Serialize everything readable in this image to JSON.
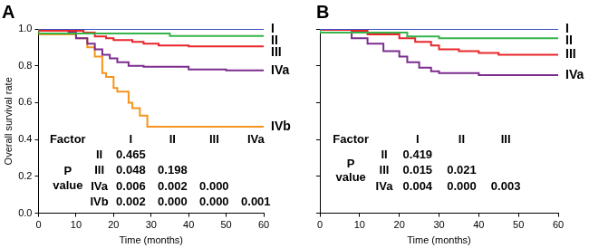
{
  "chart_data": [
    {
      "type": "line",
      "title": "A",
      "x_label": "Time (months)",
      "y_label": "Overall survival rate",
      "line_style": "step",
      "grid": false,
      "xlim": [
        0,
        60
      ],
      "xticks": [
        0,
        10,
        20,
        30,
        40,
        50,
        60
      ],
      "ylim": [
        0,
        1
      ],
      "yticks": [
        {
          "value": 0,
          "label": "0.0"
        },
        {
          "value": 0.2,
          "label": "0.2"
        },
        {
          "value": 0.4,
          "label": "0.4"
        },
        {
          "value": 0.6,
          "label": "0.6"
        },
        {
          "value": 0.8,
          "label": "0.8"
        },
        {
          "value": 1,
          "label": "1.0"
        }
      ],
      "series": [
        {
          "name": "I",
          "color": "#3a52c4",
          "x": [
            0,
            60
          ],
          "values": [
            1,
            1
          ]
        },
        {
          "name": "II",
          "color": "#35b44a",
          "x": [
            0,
            35,
            38,
            60
          ],
          "values": [
            1,
            0.975,
            0.962,
            0.962
          ]
        },
        {
          "name": "III",
          "color": "#e8262a",
          "x": [
            0,
            12,
            15,
            18,
            20,
            25,
            28,
            32,
            40,
            50,
            60
          ],
          "values": [
            1,
            0.99,
            0.98,
            0.96,
            0.95,
            0.94,
            0.93,
            0.92,
            0.91,
            0.905,
            0.905
          ]
        },
        {
          "name": "IVa",
          "color": "#7b2d8e",
          "x": [
            0,
            8,
            10,
            13,
            15,
            17,
            19,
            21,
            24,
            28,
            40,
            50,
            60
          ],
          "values": [
            1,
            0.99,
            0.98,
            0.95,
            0.92,
            0.89,
            0.86,
            0.84,
            0.82,
            0.8,
            0.795,
            0.78,
            0.775
          ]
        },
        {
          "name": "IVb",
          "color": "#f7941d",
          "x": [
            0,
            10,
            13,
            15,
            17,
            18,
            20,
            21,
            24,
            25,
            27,
            29,
            30,
            60
          ],
          "values": [
            1,
            0.97,
            0.95,
            0.9,
            0.85,
            0.76,
            0.74,
            0.68,
            0.66,
            0.6,
            0.57,
            0.53,
            0.47,
            0.47
          ]
        }
      ],
      "p_value_table": {
        "header": "Factor",
        "row_label": [
          "P",
          "value"
        ],
        "columns": [
          "I",
          "II",
          "III",
          "IVa"
        ],
        "rows": [
          {
            "label": "II",
            "values": [
              "0.465"
            ]
          },
          {
            "label": "III",
            "values": [
              "0.048",
              "0.198"
            ]
          },
          {
            "label": "IVa",
            "values": [
              "0.006",
              "0.002",
              "0.000"
            ]
          },
          {
            "label": "IVb",
            "values": [
              "0.002",
              "0.000",
              "0.000",
              "0.001"
            ]
          }
        ]
      }
    },
    {
      "type": "line",
      "title": "B",
      "x_label": "Time (months)",
      "line_style": "step",
      "grid": false,
      "tick_labels": "x",
      "xlim": [
        0,
        60
      ],
      "xticks": [
        0,
        10,
        20,
        30,
        40,
        50,
        60
      ],
      "ylim": [
        0,
        1
      ],
      "yticks": [
        0,
        0.2,
        0.4,
        0.6,
        0.8,
        1
      ],
      "series": [
        {
          "name": "I",
          "color": "#3a52c4",
          "x": [
            0,
            60
          ],
          "values": [
            1,
            1
          ]
        },
        {
          "name": "II",
          "color": "#35b44a",
          "x": [
            0,
            22,
            30,
            35,
            60
          ],
          "values": [
            1,
            0.98,
            0.96,
            0.95,
            0.95
          ]
        },
        {
          "name": "III",
          "color": "#e8262a",
          "x": [
            0,
            8,
            12,
            20,
            24,
            28,
            30,
            35,
            40,
            45,
            50,
            60
          ],
          "values": [
            1,
            0.995,
            0.99,
            0.97,
            0.95,
            0.93,
            0.91,
            0.89,
            0.88,
            0.87,
            0.86,
            0.86
          ]
        },
        {
          "name": "IVa",
          "color": "#7b2d8e",
          "x": [
            0,
            8,
            12,
            16,
            20,
            22,
            25,
            28,
            30,
            40,
            50,
            60
          ],
          "values": [
            1,
            0.98,
            0.95,
            0.92,
            0.88,
            0.85,
            0.82,
            0.79,
            0.77,
            0.76,
            0.75,
            0.75
          ]
        }
      ],
      "p_value_table": {
        "header": "Factor",
        "row_label": [
          "P",
          "value"
        ],
        "columns": [
          "I",
          "II",
          "III"
        ],
        "rows": [
          {
            "label": "II",
            "values": [
              "0.419"
            ]
          },
          {
            "label": "III",
            "values": [
              "0.015",
              "0.021"
            ]
          },
          {
            "label": "IVa",
            "values": [
              "0.004",
              "0.000",
              "0.003"
            ]
          }
        ]
      }
    }
  ]
}
